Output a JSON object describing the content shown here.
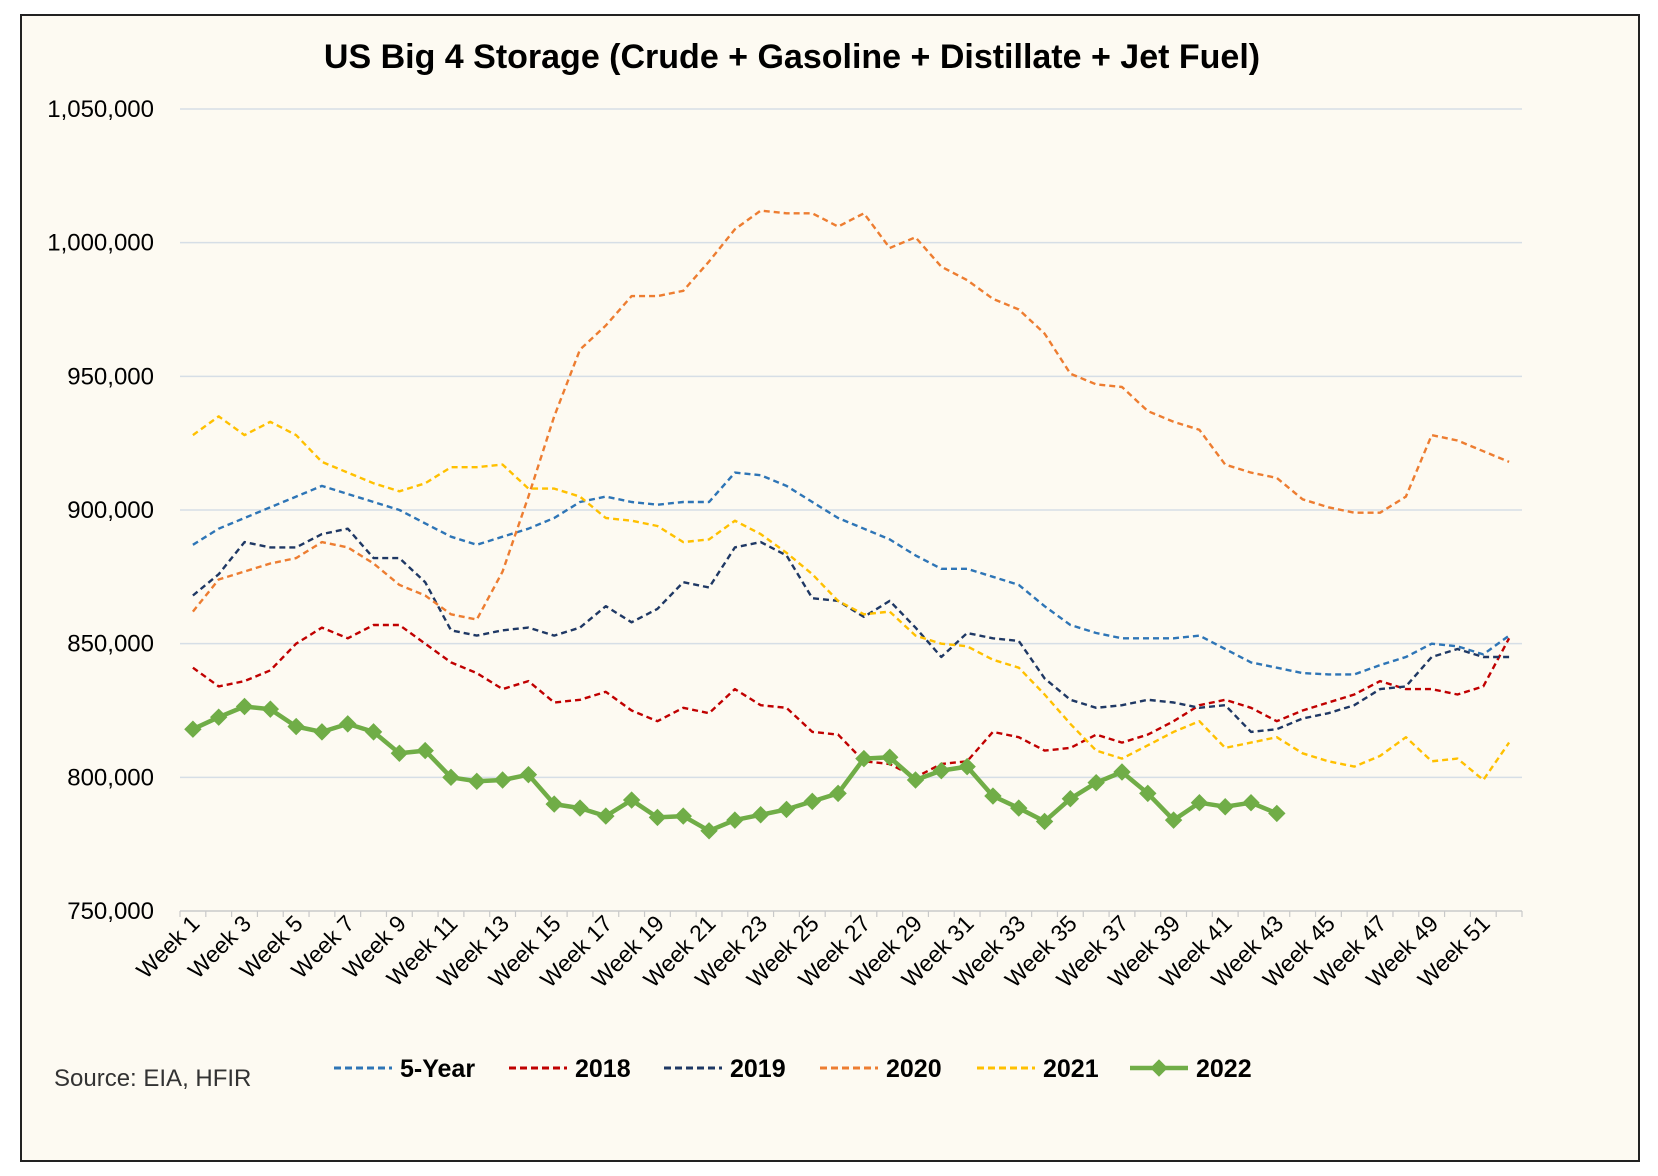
{
  "chart_data": {
    "type": "line",
    "title": "US Big 4 Storage (Crude + Gasoline + Distillate + Jet Fuel)",
    "source": "Source: EIA, HFIR",
    "xlabel": "",
    "ylabel": "",
    "ylim": [
      750000,
      1050000
    ],
    "y_ticks": [
      750000,
      800000,
      850000,
      900000,
      950000,
      1000000,
      1050000
    ],
    "y_tick_labels": [
      "750,000",
      "800,000",
      "850,000",
      "900,000",
      "950,000",
      "1,000,000",
      "1,050,000"
    ],
    "grid": true,
    "legend_position": "bottom",
    "x_tick_labels": [
      "Week 1",
      "Week 3",
      "Week 5",
      "Week 7",
      "Week 9",
      "Week 11",
      "Week 13",
      "Week 15",
      "Week 17",
      "Week 19",
      "Week 21",
      "Week 23",
      "Week 25",
      "Week 27",
      "Week 29",
      "Week 31",
      "Week 33",
      "Week 35",
      "Week 37",
      "Week 39",
      "Week 41",
      "Week 43",
      "Week 45",
      "Week 47",
      "Week 49",
      "Week 51"
    ],
    "series": [
      {
        "name": "5-Year",
        "color": "#2e75b6",
        "style": "dashed",
        "markers": false,
        "values": [
          887000,
          893000,
          897000,
          901000,
          905000,
          909000,
          906000,
          903000,
          900000,
          895000,
          890000,
          887000,
          890000,
          893000,
          897000,
          903000,
          905000,
          903000,
          902000,
          903000,
          903000,
          914000,
          913000,
          909000,
          903000,
          897000,
          893000,
          889000,
          883000,
          878000,
          878000,
          875000,
          872000,
          864000,
          857000,
          854000,
          852000,
          852000,
          852000,
          853000,
          848000,
          843000,
          841000,
          839000,
          838500,
          838500,
          842000,
          845000,
          850000,
          849000,
          846000,
          853000
        ]
      },
      {
        "name": "2018",
        "color": "#c00000",
        "style": "dashed",
        "markers": false,
        "values": [
          841000,
          834000,
          836000,
          840000,
          850000,
          856000,
          852000,
          857000,
          857000,
          850000,
          843000,
          839000,
          833000,
          836000,
          828000,
          829000,
          832000,
          825000,
          821000,
          826000,
          824000,
          833000,
          827000,
          826000,
          817000,
          816000,
          806000,
          805000,
          800000,
          805000,
          806000,
          817000,
          815000,
          810000,
          811000,
          816000,
          813000,
          816000,
          821000,
          827000,
          829000,
          826000,
          821000,
          825000,
          828000,
          831000,
          836000,
          833000,
          833000,
          831000,
          834000,
          852000
        ]
      },
      {
        "name": "2019",
        "color": "#1f3864",
        "style": "dashed",
        "markers": false,
        "values": [
          868000,
          876000,
          888000,
          886000,
          886000,
          891000,
          893000,
          882000,
          882000,
          873000,
          855000,
          853000,
          855000,
          856000,
          853000,
          856000,
          864000,
          858000,
          863000,
          873000,
          871000,
          886000,
          888000,
          883000,
          867000,
          866000,
          860000,
          866000,
          856000,
          845000,
          854000,
          852000,
          851000,
          837000,
          829000,
          826000,
          827000,
          829000,
          828000,
          826000,
          827000,
          817000,
          818000,
          822000,
          824000,
          827000,
          833000,
          834000,
          845000,
          848000,
          845000,
          845000
        ]
      },
      {
        "name": "2020",
        "color": "#ed7d31",
        "style": "dashed",
        "markers": false,
        "values": [
          862000,
          874000,
          877000,
          880000,
          882000,
          888000,
          886000,
          880000,
          872000,
          868000,
          861000,
          859000,
          877000,
          905000,
          935000,
          960000,
          969000,
          980000,
          980000,
          982000,
          993000,
          1005000,
          1012000,
          1011000,
          1011000,
          1006000,
          1011000,
          998000,
          1002000,
          991000,
          986000,
          979000,
          975000,
          966000,
          951000,
          947000,
          946000,
          937000,
          933000,
          930000,
          917000,
          914000,
          912000,
          904000,
          901000,
          899000,
          899000,
          905000,
          928000,
          926000,
          922000,
          918000
        ]
      },
      {
        "name": "2021",
        "color": "#ffc000",
        "style": "dashed",
        "markers": false,
        "values": [
          928000,
          935000,
          928000,
          933000,
          928000,
          918000,
          914000,
          910000,
          907000,
          910000,
          916000,
          916000,
          917000,
          908000,
          908000,
          905000,
          897000,
          896000,
          894000,
          888000,
          889000,
          896000,
          891000,
          884000,
          876000,
          866000,
          861000,
          862000,
          853000,
          850000,
          849000,
          844000,
          841000,
          831000,
          820000,
          810000,
          807000,
          812000,
          817000,
          821000,
          811000,
          813000,
          815000,
          809000,
          806000,
          804000,
          808000,
          815000,
          806000,
          807000,
          799000,
          813000
        ]
      },
      {
        "name": "2022",
        "color": "#70ad47",
        "style": "solid",
        "markers": true,
        "values": [
          818000,
          822500,
          826500,
          825500,
          819000,
          817000,
          820000,
          817000,
          809000,
          810000,
          800000,
          798500,
          799000,
          801000,
          790000,
          788500,
          785500,
          791500,
          785000,
          785500,
          780000,
          784000,
          786000,
          788000,
          791000,
          794000,
          807000,
          807500,
          799000,
          802500,
          804000,
          793000,
          788500,
          783500,
          792000,
          798000,
          802000,
          794000,
          784000,
          790500,
          789000,
          790500,
          786500
        ]
      }
    ]
  }
}
